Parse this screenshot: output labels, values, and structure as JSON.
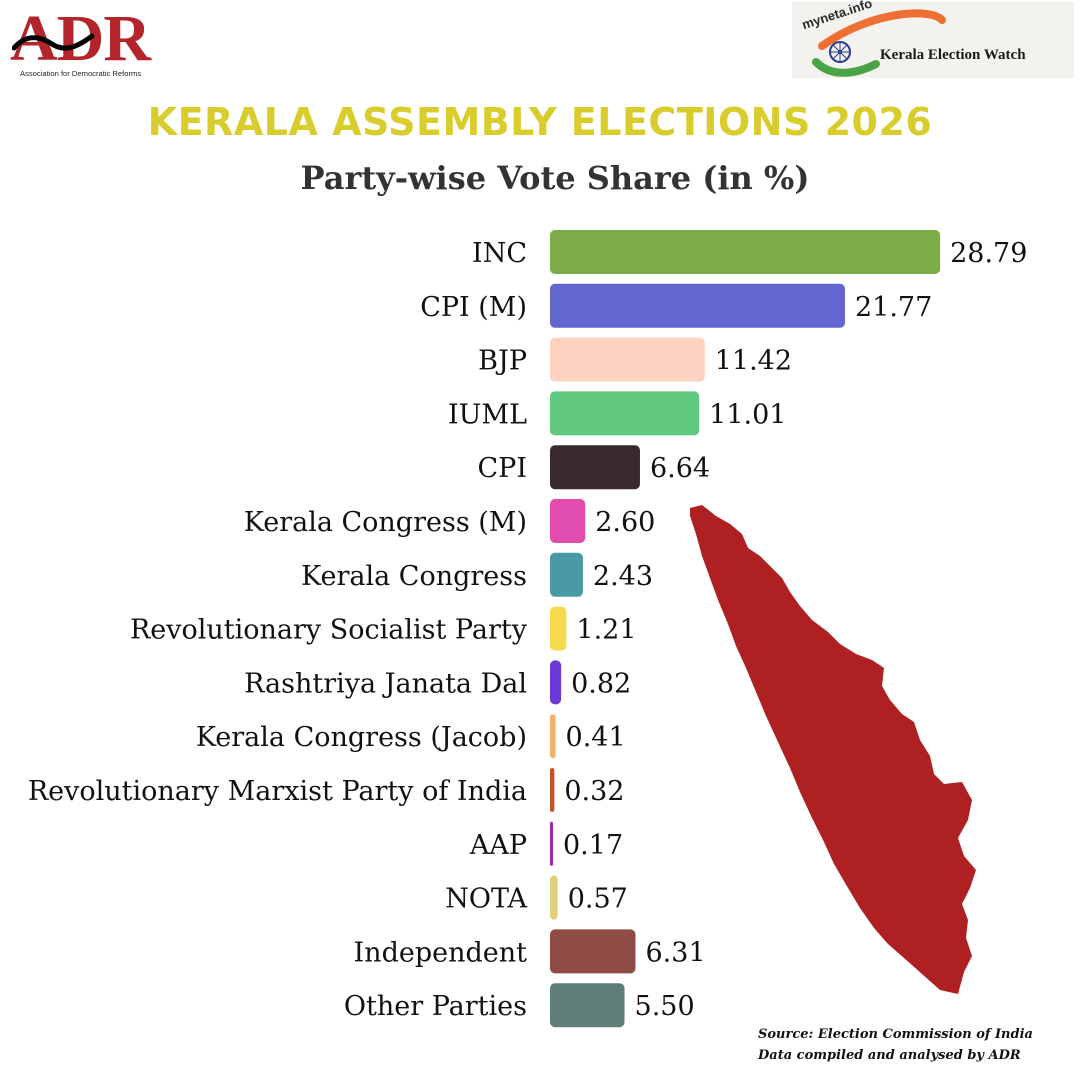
{
  "logos": {
    "adr_text": "ADR",
    "adr_subtitle": "Association for Democratic Reforms",
    "myneta_tag": "myneta.info",
    "myneta_subtitle": "Kerala Election Watch"
  },
  "header": {
    "title": "KERALA ASSEMBLY ELECTIONS 2026",
    "subtitle": "Party-wise Vote Share (in %)"
  },
  "chart_data": {
    "type": "bar",
    "orientation": "horizontal",
    "categories": [
      "INC",
      "CPI (M)",
      "BJP",
      "IUML",
      "CPI",
      "Kerala Congress (M)",
      "Kerala Congress",
      "Revolutionary Socialist Party",
      "Rashtriya Janata Dal",
      "Kerala Congress (Jacob)",
      "Revolutionary Marxist Party of India",
      "AAP",
      "NOTA",
      "Independent",
      "Other Parties"
    ],
    "values": [
      28.79,
      21.77,
      11.42,
      11.01,
      6.64,
      2.6,
      2.43,
      1.21,
      0.82,
      0.41,
      0.32,
      0.17,
      0.57,
      6.31,
      5.5
    ],
    "value_labels": [
      "28.79",
      "21.77",
      "11.42",
      "11.01",
      "6.64",
      "2.60",
      "2.43",
      "1.21",
      "0.82",
      "0.41",
      "0.32",
      "0.17",
      "0.57",
      "6.31",
      "5.50"
    ],
    "colors": [
      "#7dab45",
      "#6466cf",
      "#fdd2c0",
      "#60c97f",
      "#3a2a2d",
      "#e14daf",
      "#4a9aa6",
      "#f7d94e",
      "#6a3ad6",
      "#f2b16a",
      "#c5531f",
      "#9a2ab0",
      "#e2d07b",
      "#8f4c46",
      "#5f7d79"
    ],
    "title": "Party-wise Vote Share (in %)",
    "xlabel": "",
    "ylabel": "",
    "xlim": [
      0,
      30
    ],
    "grid": false,
    "legend": "none"
  },
  "map": {
    "region": "Kerala",
    "color": "#ae2022"
  },
  "footer": {
    "source": "Source: Election Commission of India",
    "credit": "Data compiled and analysed by ADR"
  }
}
